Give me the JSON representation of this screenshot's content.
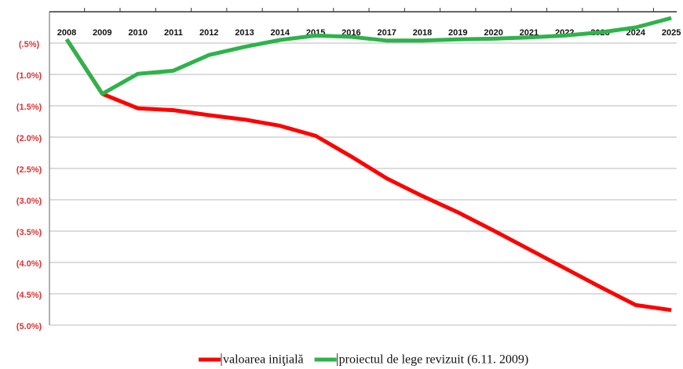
{
  "chart_data": {
    "type": "line",
    "categories": [
      "2008",
      "2009",
      "2010",
      "2011",
      "2012",
      "2013",
      "2014",
      "2015",
      "2016",
      "2017",
      "2018",
      "2019",
      "2020",
      "2021",
      "2022",
      "2023",
      "2024",
      "2025"
    ],
    "series": [
      {
        "name": "valoarea iniţială",
        "color": "#ff0000",
        "values": [
          -0.44,
          -1.31,
          -1.54,
          -1.57,
          -1.65,
          -1.72,
          -1.82,
          -1.98,
          -2.31,
          -2.66,
          -2.94,
          -3.2,
          -3.49,
          -3.79,
          -4.09,
          -4.39,
          -4.68,
          -4.76
        ]
      },
      {
        "name": "proiectul de lege revizuit (6.11. 2009)",
        "color": "#2db34a",
        "values": [
          -0.44,
          -1.31,
          -0.99,
          -0.94,
          -0.69,
          -0.56,
          -0.45,
          -0.38,
          -0.4,
          -0.46,
          -0.46,
          -0.44,
          -0.43,
          -0.41,
          -0.38,
          -0.33,
          -0.25,
          -0.1
        ]
      }
    ],
    "ylim": [
      -5,
      0
    ],
    "yticks": [
      {
        "value": -0.5,
        "label": "(.5%)"
      },
      {
        "value": -1.0,
        "label": "(1.0%)"
      },
      {
        "value": -1.5,
        "label": "(1.5%)"
      },
      {
        "value": -2.0,
        "label": "(2.0%)"
      },
      {
        "value": -2.5,
        "label": "(2.5%)"
      },
      {
        "value": -3.0,
        "label": "(3.0%)"
      },
      {
        "value": -3.5,
        "label": "(3.5%)"
      },
      {
        "value": -4.0,
        "label": "(4.0%)"
      },
      {
        "value": -4.5,
        "label": "(4.5%)"
      },
      {
        "value": -5.0,
        "label": "(5.0%)"
      }
    ],
    "grid": true,
    "legend": "bottom"
  }
}
